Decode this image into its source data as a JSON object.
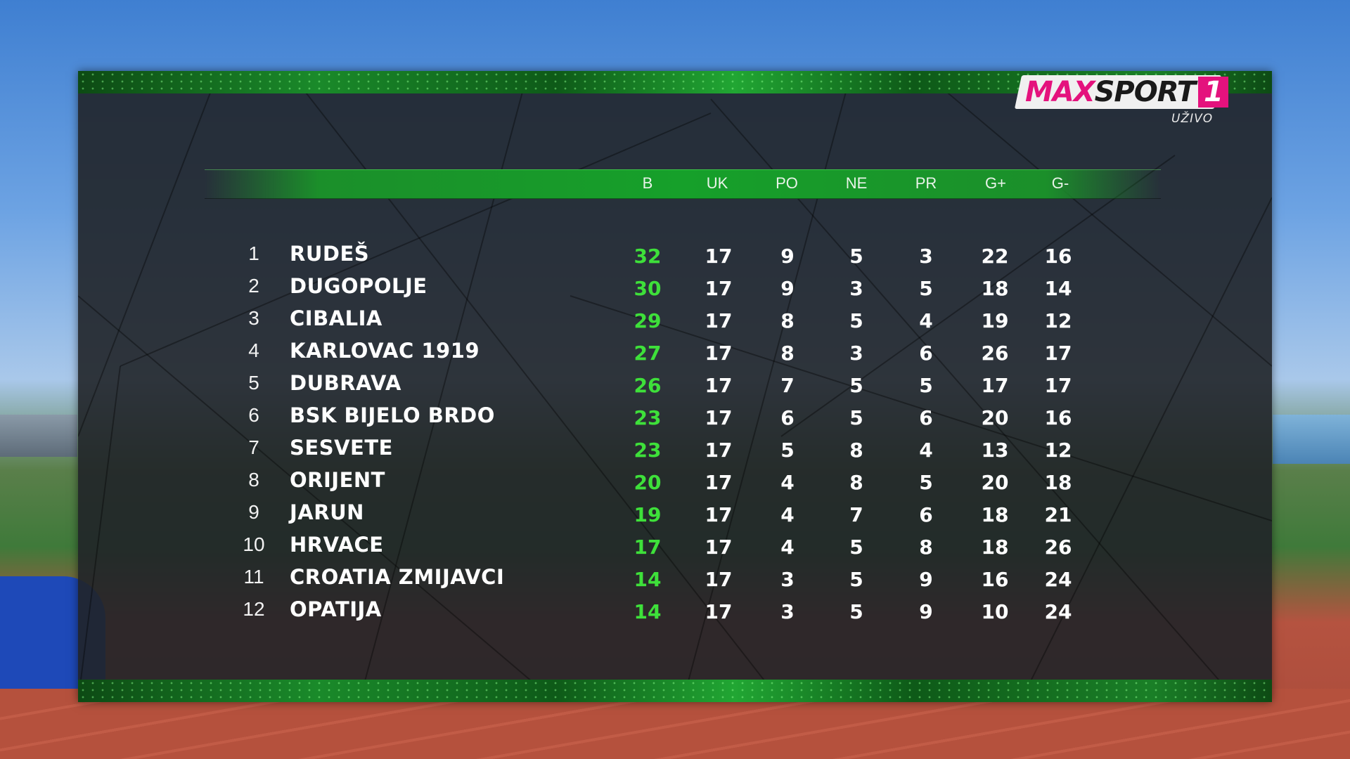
{
  "logo": {
    "brand_max": "MAX",
    "brand_sport": "SPORT",
    "brand_number": "1",
    "live_label": "UŽIVO",
    "accent_color": "#e4127d"
  },
  "table": {
    "columns": [
      "B",
      "UK",
      "PO",
      "NE",
      "PR",
      "G+",
      "G-"
    ],
    "rows": [
      {
        "pos": "1",
        "team": "RUDEŠ",
        "B": "32",
        "UK": "17",
        "PO": "9",
        "NE": "5",
        "PR": "3",
        "GF": "22",
        "GA": "16"
      },
      {
        "pos": "2",
        "team": "DUGOPOLJE",
        "B": "30",
        "UK": "17",
        "PO": "9",
        "NE": "3",
        "PR": "5",
        "GF": "18",
        "GA": "14"
      },
      {
        "pos": "3",
        "team": "CIBALIA",
        "B": "29",
        "UK": "17",
        "PO": "8",
        "NE": "5",
        "PR": "4",
        "GF": "19",
        "GA": "12"
      },
      {
        "pos": "4",
        "team": "KARLOVAC 1919",
        "B": "27",
        "UK": "17",
        "PO": "8",
        "NE": "3",
        "PR": "6",
        "GF": "26",
        "GA": "17"
      },
      {
        "pos": "5",
        "team": "DUBRAVA",
        "B": "26",
        "UK": "17",
        "PO": "7",
        "NE": "5",
        "PR": "5",
        "GF": "17",
        "GA": "17"
      },
      {
        "pos": "6",
        "team": "BSK BIJELO BRDO",
        "B": "23",
        "UK": "17",
        "PO": "6",
        "NE": "5",
        "PR": "6",
        "GF": "20",
        "GA": "16"
      },
      {
        "pos": "7",
        "team": "SESVETE",
        "B": "23",
        "UK": "17",
        "PO": "5",
        "NE": "8",
        "PR": "4",
        "GF": "13",
        "GA": "12"
      },
      {
        "pos": "8",
        "team": "ORIJENT",
        "B": "20",
        "UK": "17",
        "PO": "4",
        "NE": "8",
        "PR": "5",
        "GF": "20",
        "GA": "18"
      },
      {
        "pos": "9",
        "team": "JARUN",
        "B": "19",
        "UK": "17",
        "PO": "4",
        "NE": "7",
        "PR": "6",
        "GF": "18",
        "GA": "21"
      },
      {
        "pos": "10",
        "team": "HRVACE",
        "B": "17",
        "UK": "17",
        "PO": "4",
        "NE": "5",
        "PR": "8",
        "GF": "18",
        "GA": "26"
      },
      {
        "pos": "11",
        "team": "CROATIA ZMIJAVCI",
        "B": "14",
        "UK": "17",
        "PO": "3",
        "NE": "5",
        "PR": "9",
        "GF": "16",
        "GA": "24"
      },
      {
        "pos": "12",
        "team": "OPATIJA",
        "B": "14",
        "UK": "17",
        "PO": "3",
        "NE": "5",
        "PR": "9",
        "GF": "10",
        "GA": "24"
      }
    ]
  },
  "colors": {
    "points_green": "#3ee03a",
    "header_green": "#16a02a"
  }
}
